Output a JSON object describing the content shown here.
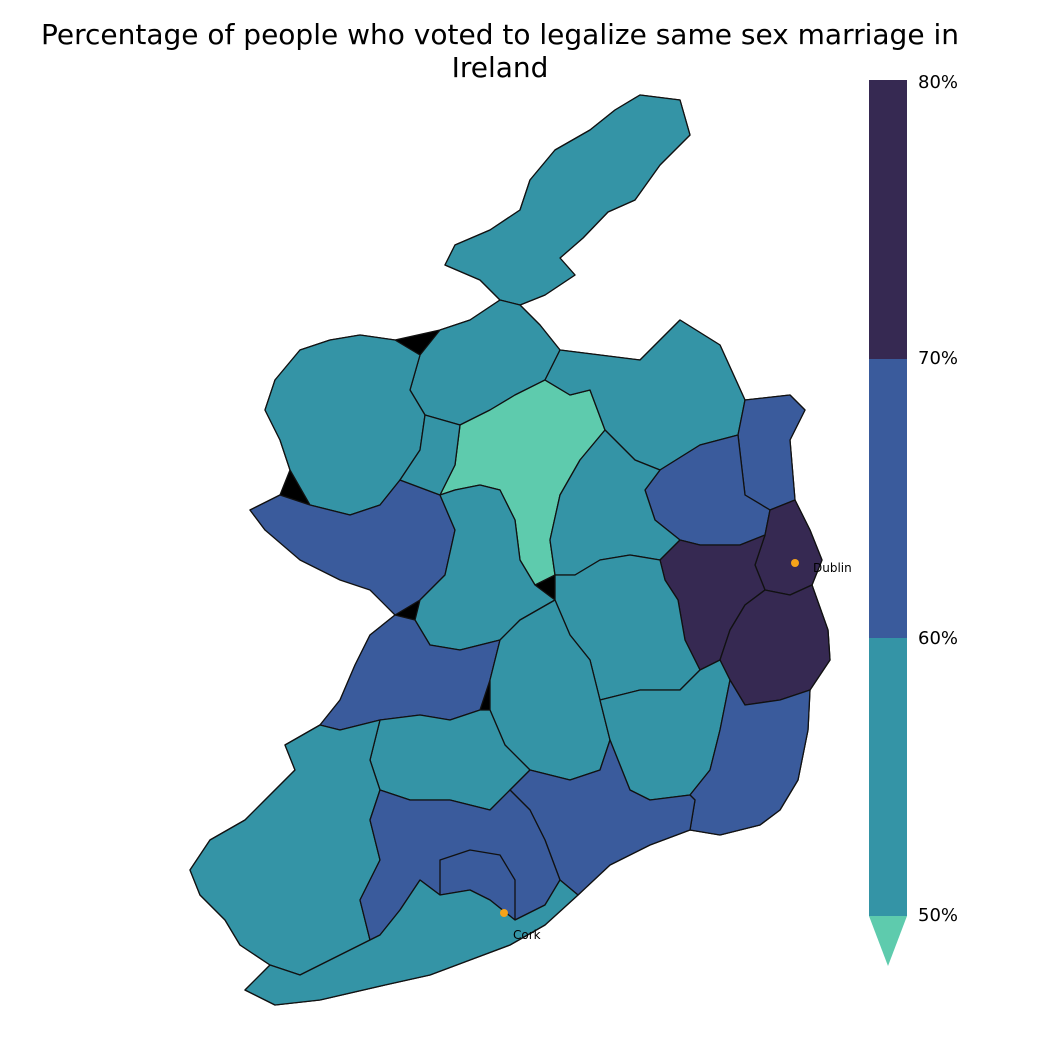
{
  "title": "Percentage of people who voted to legalize same sex marriage in Ireland",
  "colors": {
    "below_50": "#5ecbad",
    "band_50_60": "#3494a6",
    "band_60_70": "#3a5b9c",
    "band_70_80": "#362952",
    "city_marker": "#f5a31a"
  },
  "legend": {
    "ticks": [
      "80%",
      "70%",
      "60%",
      "50%"
    ]
  },
  "cities": [
    {
      "name": "Dublin"
    },
    {
      "name": "Cork"
    }
  ],
  "chart_data": {
    "type": "choropleth",
    "title": "Percentage of people who voted to legalize same sex marriage in Ireland",
    "color_scale": {
      "bins": [
        {
          "range": "<50%",
          "color": "#5ecbad"
        },
        {
          "range": "50%-60%",
          "color": "#3494a6"
        },
        {
          "range": "60%-70%",
          "color": "#3a5b9c"
        },
        {
          "range": "70%-80%",
          "color": "#362952"
        }
      ],
      "ticks": [
        50,
        60,
        70,
        80
      ]
    },
    "legend_placement": "right"
  }
}
